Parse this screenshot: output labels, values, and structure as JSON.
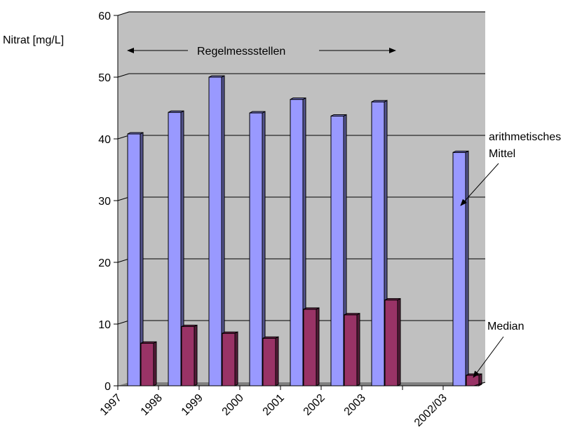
{
  "chart_data": {
    "type": "bar",
    "ylabel": "Nitrat [mg/L]",
    "ylim": [
      0,
      60
    ],
    "yticks": [
      0,
      10,
      20,
      30,
      40,
      50,
      60
    ],
    "categories": [
      "1997",
      "1998",
      "1999",
      "2000",
      "2001",
      "2002",
      "2003",
      "",
      "2002/03"
    ],
    "series": [
      {
        "name": "arithmetisches Mittel",
        "color": "#9999ff",
        "values": [
          40.8,
          44.3,
          50.0,
          44.2,
          46.4,
          43.7,
          46.0,
          null,
          37.8
        ]
      },
      {
        "name": "Median",
        "color": "#993366",
        "values": [
          6.9,
          9.6,
          8.5,
          7.7,
          12.4,
          11.5,
          13.9,
          null,
          1.7
        ]
      }
    ],
    "grid": true,
    "annotations": {
      "range_label": "Regelmessstellen",
      "mean_label_line1": "arithmetisches",
      "mean_label_line2": "Mittel",
      "median_label": "Median"
    },
    "colors": {
      "wall": "#c0c0c0",
      "floor": "#808080",
      "grid": "#000000"
    }
  }
}
